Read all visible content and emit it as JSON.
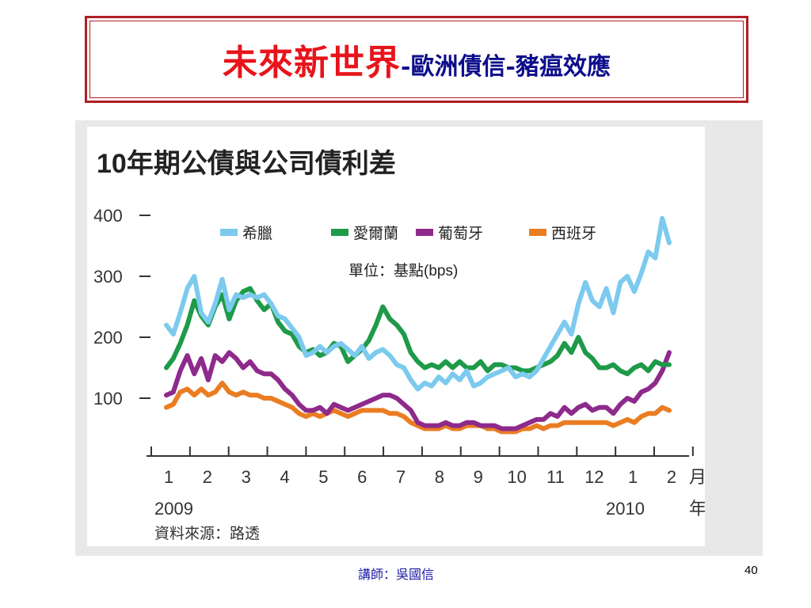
{
  "slide": {
    "title_main": "未來新世界",
    "title_sep1": "-",
    "title_sub1": "歐洲債信",
    "title_sep2": "-",
    "title_sub2": "豬瘟效應",
    "instructor": "講師：吳國信",
    "page_number": "40"
  },
  "chart_data": {
    "type": "line",
    "title": "10年期公債與公司債利差",
    "unit_note": "單位：基點(bps)",
    "source": "資料來源：路透",
    "xlabel_month": "月",
    "xlabel_year": "年",
    "year_labels": [
      "2009",
      "2010"
    ],
    "month_ticks": [
      "1",
      "2",
      "3",
      "4",
      "5",
      "6",
      "7",
      "8",
      "9",
      "10",
      "11",
      "12",
      "1",
      "2"
    ],
    "ylim": [
      0,
      400
    ],
    "yticks": [
      "400",
      "300",
      "200",
      "100"
    ],
    "grid": false,
    "legend_position": "top",
    "series": [
      {
        "name": "希臘",
        "color": "#7ccaee",
        "values": [
          220,
          205,
          240,
          280,
          300,
          240,
          225,
          255,
          295,
          245,
          270,
          265,
          270,
          265,
          270,
          255,
          235,
          230,
          215,
          200,
          170,
          175,
          185,
          175,
          185,
          190,
          180,
          170,
          185,
          165,
          175,
          180,
          170,
          155,
          150,
          130,
          115,
          125,
          120,
          135,
          125,
          140,
          130,
          145,
          120,
          125,
          135,
          140,
          145,
          150,
          135,
          140,
          135,
          145,
          165,
          185,
          205,
          225,
          205,
          255,
          290,
          260,
          250,
          280,
          240,
          290,
          300,
          275,
          305,
          340,
          330,
          395,
          355
        ]
      },
      {
        "name": "愛爾蘭",
        "color": "#1e9a49",
        "values": [
          150,
          165,
          190,
          220,
          260,
          235,
          220,
          250,
          270,
          230,
          260,
          275,
          280,
          260,
          245,
          255,
          225,
          210,
          205,
          185,
          175,
          180,
          170,
          175,
          190,
          185,
          160,
          170,
          180,
          195,
          220,
          250,
          230,
          220,
          205,
          175,
          160,
          150,
          155,
          150,
          160,
          150,
          160,
          150,
          150,
          160,
          145,
          155,
          155,
          150,
          150,
          145,
          145,
          150,
          155,
          160,
          170,
          190,
          175,
          200,
          175,
          165,
          150,
          150,
          155,
          145,
          140,
          150,
          155,
          145,
          160,
          155,
          155
        ]
      },
      {
        "name": "葡萄牙",
        "color": "#8e2a8c",
        "values": [
          105,
          110,
          145,
          170,
          140,
          165,
          130,
          170,
          160,
          175,
          165,
          150,
          160,
          145,
          140,
          140,
          130,
          115,
          105,
          90,
          80,
          80,
          85,
          75,
          90,
          85,
          80,
          85,
          90,
          95,
          100,
          105,
          105,
          100,
          90,
          80,
          60,
          55,
          55,
          55,
          60,
          55,
          55,
          60,
          60,
          55,
          55,
          55,
          50,
          50,
          50,
          55,
          60,
          65,
          65,
          75,
          70,
          85,
          75,
          85,
          90,
          80,
          85,
          85,
          75,
          90,
          100,
          95,
          110,
          115,
          125,
          145,
          175
        ]
      },
      {
        "name": "西班牙",
        "color": "#ea7d22",
        "values": [
          85,
          90,
          110,
          115,
          105,
          115,
          105,
          110,
          125,
          110,
          105,
          110,
          105,
          105,
          100,
          100,
          95,
          90,
          85,
          75,
          70,
          75,
          70,
          75,
          80,
          75,
          70,
          75,
          80,
          80,
          80,
          80,
          75,
          75,
          70,
          60,
          55,
          50,
          50,
          50,
          55,
          50,
          50,
          55,
          55,
          55,
          50,
          50,
          45,
          45,
          45,
          50,
          50,
          55,
          50,
          55,
          55,
          60,
          60,
          60,
          60,
          60,
          60,
          60,
          55,
          60,
          65,
          60,
          70,
          75,
          75,
          85,
          80
        ]
      }
    ]
  }
}
